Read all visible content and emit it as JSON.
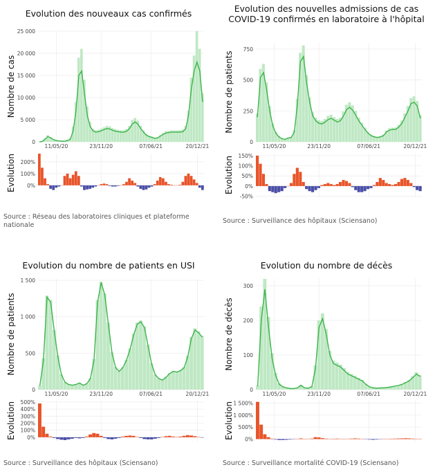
{
  "colors": {
    "line": "#3cb44b",
    "bar": "#bfe8c4",
    "increase": "#e8542a",
    "decrease": "#4b4fa6",
    "grid": "#ececec"
  },
  "chart_data": [
    {
      "type": "line",
      "id": "cases",
      "title_lines": [
        "Evolution des nouveaux cas confirmés"
      ],
      "ylabel": "Nombre de cas",
      "y_ticks": [
        0,
        5000,
        10000,
        15000,
        20000,
        25000
      ],
      "y_tick_labels": [
        "0",
        "5 000",
        "10 000",
        "15 000",
        "20 000",
        "25 000"
      ],
      "ylim": [
        0,
        25000
      ],
      "x_tick_labels": [
        "11/05/20",
        "23/11/20",
        "07/06/21",
        "20/12/21"
      ],
      "series_7day_avg": [
        0,
        100,
        600,
        1200,
        900,
        500,
        300,
        200,
        150,
        150,
        300,
        600,
        2500,
        7000,
        15000,
        16000,
        11000,
        6000,
        3500,
        2500,
        2200,
        2300,
        2500,
        2800,
        3000,
        2900,
        2600,
        2400,
        2300,
        2200,
        2200,
        2400,
        3000,
        4000,
        4500,
        4000,
        3000,
        2200,
        1500,
        1200,
        1000,
        800,
        900,
        1300,
        1700,
        2000,
        2100,
        2200,
        2200,
        2200,
        2200,
        2300,
        3000,
        6000,
        12000,
        16000,
        18000,
        16000,
        9000
      ],
      "series_daily": [
        0,
        150,
        800,
        1500,
        1100,
        600,
        400,
        300,
        200,
        200,
        500,
        900,
        3500,
        9000,
        19000,
        21000,
        14000,
        8000,
        4500,
        3000,
        2600,
        2700,
        3000,
        3300,
        3600,
        3500,
        3100,
        2900,
        2700,
        2600,
        2600,
        2900,
        3600,
        4900,
        5400,
        4800,
        3600,
        2600,
        1800,
        1400,
        1200,
        950,
        1050,
        1500,
        2000,
        2400,
        2500,
        2600,
        2600,
        2600,
        2650,
        2800,
        3600,
        7000,
        14500,
        19500,
        25000,
        21000,
        11000
      ],
      "evolution_label": "Evolution",
      "evo_ticks": [
        0,
        100,
        200
      ],
      "evo_tick_labels": [
        "0%",
        "100%",
        "200%"
      ],
      "evo_ylim": [
        -60,
        270
      ],
      "evolution": [
        270,
        150,
        60,
        10,
        -30,
        -40,
        -20,
        -10,
        0,
        80,
        100,
        60,
        90,
        120,
        80,
        -10,
        -40,
        -35,
        -30,
        -20,
        -10,
        0,
        10,
        15,
        10,
        -5,
        -10,
        -10,
        -5,
        0,
        10,
        30,
        60,
        40,
        20,
        -10,
        -30,
        -40,
        -35,
        -20,
        -10,
        10,
        40,
        70,
        60,
        30,
        10,
        5,
        0,
        0,
        5,
        30,
        80,
        100,
        80,
        50,
        20,
        -20,
        -40
      ],
      "source": "Source : Réseau des laboratoires cliniques et plateforme nationale"
    },
    {
      "type": "line",
      "id": "admissions",
      "title_lines": [
        "Evolution des nouvelles admissions de cas",
        "COVID-19 confirmés en laboratoire à l'hôpital"
      ],
      "ylabel": "Nombre de patients",
      "y_ticks": [
        0,
        250,
        500,
        750
      ],
      "y_tick_labels": [
        "0",
        "250",
        "500",
        "750"
      ],
      "ylim": [
        0,
        800
      ],
      "x_tick_labels": [
        "11/05/20",
        "23/11/20",
        "07/06/21",
        "20/12/21"
      ],
      "series_7day_avg": [
        200,
        520,
        560,
        420,
        250,
        130,
        70,
        40,
        25,
        20,
        30,
        35,
        80,
        300,
        650,
        690,
        480,
        320,
        210,
        170,
        150,
        145,
        160,
        180,
        190,
        175,
        160,
        170,
        210,
        260,
        280,
        255,
        215,
        170,
        135,
        100,
        70,
        50,
        40,
        35,
        40,
        50,
        80,
        95,
        100,
        100,
        120,
        150,
        200,
        250,
        310,
        320,
        290,
        190
      ],
      "series_daily": [
        230,
        590,
        630,
        480,
        290,
        150,
        80,
        50,
        30,
        25,
        35,
        40,
        95,
        350,
        720,
        780,
        540,
        360,
        240,
        195,
        175,
        170,
        185,
        210,
        220,
        200,
        185,
        195,
        245,
        300,
        320,
        295,
        250,
        195,
        155,
        115,
        80,
        60,
        48,
        42,
        46,
        58,
        92,
        110,
        115,
        116,
        138,
        172,
        230,
        290,
        355,
        368,
        330,
        220
      ],
      "evolution_label": "Evolution",
      "evo_ticks": [
        -50,
        0,
        50,
        100,
        150
      ],
      "evo_tick_labels": [
        "-50%",
        "0%",
        "50%",
        "100%",
        "150%"
      ],
      "evo_ylim": [
        -55,
        160
      ],
      "evolution": [
        150,
        110,
        60,
        10,
        -25,
        -30,
        -35,
        -30,
        -25,
        -10,
        0,
        15,
        60,
        90,
        70,
        20,
        -15,
        -25,
        -30,
        -20,
        -10,
        5,
        10,
        15,
        10,
        5,
        10,
        20,
        30,
        25,
        15,
        -5,
        -20,
        -30,
        -30,
        -25,
        -15,
        -10,
        5,
        20,
        40,
        30,
        15,
        10,
        5,
        10,
        20,
        35,
        40,
        30,
        15,
        -5,
        -20,
        -25
      ],
      "source": "Source : Surveillance des hôpitaux (Sciensano)"
    },
    {
      "type": "line",
      "id": "icu",
      "title_lines": [
        "Evolution du nombre de patients en USI"
      ],
      "ylabel": "Nombre de patients",
      "y_ticks": [
        0,
        500,
        1000,
        1500
      ],
      "y_tick_labels": [
        "0",
        "500",
        "1 000",
        "1 500"
      ],
      "ylim": [
        0,
        1520
      ],
      "x_tick_labels": [
        "11/05/20",
        "23/11/20",
        "07/06/21",
        "20/12/21"
      ],
      "series_7day_avg": [
        50,
        400,
        1270,
        1200,
        800,
        450,
        200,
        100,
        70,
        60,
        70,
        90,
        60,
        80,
        150,
        400,
        1200,
        1470,
        1300,
        900,
        500,
        300,
        250,
        300,
        400,
        550,
        750,
        900,
        930,
        850,
        600,
        350,
        200,
        150,
        130,
        170,
        220,
        250,
        240,
        260,
        300,
        450,
        700,
        820,
        780,
        720
      ],
      "series_daily": [
        55,
        430,
        1290,
        1230,
        820,
        470,
        210,
        105,
        75,
        63,
        74,
        95,
        64,
        84,
        158,
        420,
        1230,
        1480,
        1320,
        920,
        515,
        310,
        258,
        310,
        410,
        565,
        770,
        920,
        950,
        870,
        615,
        360,
        206,
        156,
        135,
        176,
        228,
        258,
        248,
        268,
        310,
        465,
        720,
        840,
        800,
        740
      ],
      "evolution_label": "Evolution",
      "evo_ticks": [
        0,
        100,
        200,
        300,
        400,
        500
      ],
      "evo_tick_labels": [
        "0%",
        "100%",
        "200%",
        "300%",
        "400%",
        "500%"
      ],
      "evo_ylim": [
        -60,
        520
      ],
      "evolution": [
        480,
        150,
        50,
        10,
        -10,
        -25,
        -35,
        -40,
        -30,
        -20,
        -10,
        -15,
        -10,
        10,
        40,
        60,
        50,
        20,
        -10,
        -25,
        -30,
        -20,
        -10,
        10,
        20,
        25,
        20,
        5,
        -10,
        -25,
        -30,
        -30,
        -20,
        -10,
        5,
        15,
        20,
        10,
        5,
        10,
        20,
        30,
        25,
        15,
        5,
        -5
      ],
      "source": "Source : Surveillance des hôpitaux (Sciensano)"
    },
    {
      "type": "line",
      "id": "deaths",
      "title_lines": [
        "Evolution du nombre de décès"
      ],
      "ylabel": "Nombre de décès",
      "y_ticks": [
        0,
        100,
        200,
        300
      ],
      "y_tick_labels": [
        "0",
        "100",
        "200",
        "300"
      ],
      "ylim": [
        0,
        320
      ],
      "x_tick_labels": [
        "11/05/20",
        "23/11/20",
        "07/06/21",
        "20/12/21"
      ],
      "series_7day_avg": [
        10,
        200,
        290,
        180,
        90,
        40,
        15,
        8,
        5,
        3,
        3,
        5,
        12,
        5,
        4,
        8,
        60,
        180,
        205,
        160,
        100,
        75,
        70,
        65,
        55,
        45,
        40,
        35,
        30,
        25,
        15,
        8,
        5,
        4,
        5,
        5,
        6,
        8,
        10,
        12,
        15,
        20,
        25,
        35,
        45,
        38
      ],
      "series_daily": [
        12,
        240,
        320,
        210,
        105,
        48,
        18,
        10,
        6,
        4,
        4,
        6,
        14,
        6,
        5,
        10,
        70,
        200,
        220,
        175,
        112,
        84,
        78,
        72,
        62,
        51,
        45,
        40,
        34,
        28,
        17,
        9,
        6,
        5,
        6,
        6,
        7,
        9,
        11,
        13,
        17,
        22,
        28,
        39,
        50,
        42
      ],
      "evolution_label": "Evolution",
      "evo_ticks": [
        0,
        500,
        1000,
        1500
      ],
      "evo_tick_labels": [
        "0%",
        "500%",
        "1 000%",
        "1 500%"
      ],
      "evo_ylim": [
        -100,
        1600
      ],
      "evolution": [
        1550,
        600,
        200,
        80,
        20,
        -20,
        -40,
        -40,
        -30,
        -20,
        -10,
        10,
        30,
        10,
        0,
        20,
        80,
        70,
        40,
        20,
        10,
        15,
        20,
        10,
        5,
        10,
        20,
        30,
        20,
        10,
        -10,
        -20,
        -30,
        -20,
        -10,
        0,
        10,
        15,
        20,
        25,
        30,
        35,
        30,
        20,
        10,
        5
      ],
      "source": "Source : Surveillance mortalité COVID-19 (Sciensano)"
    }
  ]
}
